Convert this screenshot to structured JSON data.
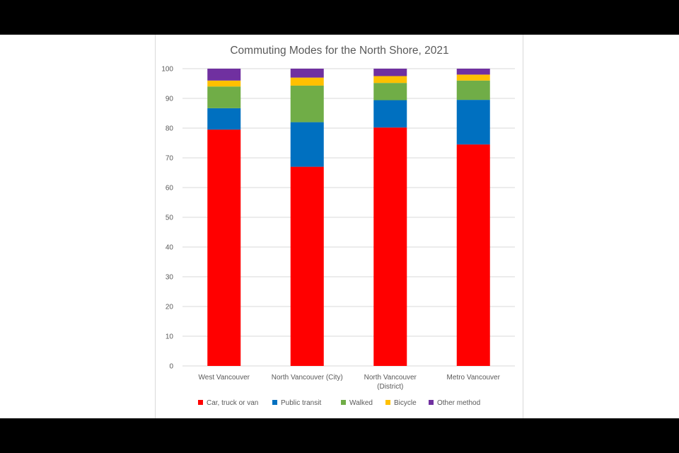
{
  "chart_data": {
    "type": "bar",
    "stacked": true,
    "title": "Commuting Modes for the North Shore, 2021",
    "xlabel": "",
    "ylabel": "",
    "ylim": [
      0,
      100
    ],
    "yticks": [
      0,
      10,
      20,
      30,
      40,
      50,
      60,
      70,
      80,
      90,
      100
    ],
    "grid": true,
    "legend": "bottom",
    "categories": [
      [
        "West Vancouver"
      ],
      [
        "North Vancouver (City)"
      ],
      [
        "North Vancouver",
        "(District)"
      ],
      [
        "Metro Vancouver"
      ]
    ],
    "series": [
      {
        "name": "Car, truck or van",
        "color": "#ff0000",
        "values": [
          79.5,
          67.0,
          80.2,
          74.5
        ]
      },
      {
        "name": "Public transit",
        "color": "#0070c0",
        "values": [
          7.2,
          15.0,
          9.2,
          15.0
        ]
      },
      {
        "name": "Walked",
        "color": "#70ad47",
        "values": [
          7.3,
          12.3,
          5.8,
          6.5
        ]
      },
      {
        "name": "Bicycle",
        "color": "#ffc000",
        "values": [
          2.0,
          2.7,
          2.3,
          2.0
        ]
      },
      {
        "name": "Other method",
        "color": "#7030a0",
        "values": [
          4.0,
          3.0,
          2.5,
          2.0
        ]
      }
    ]
  }
}
